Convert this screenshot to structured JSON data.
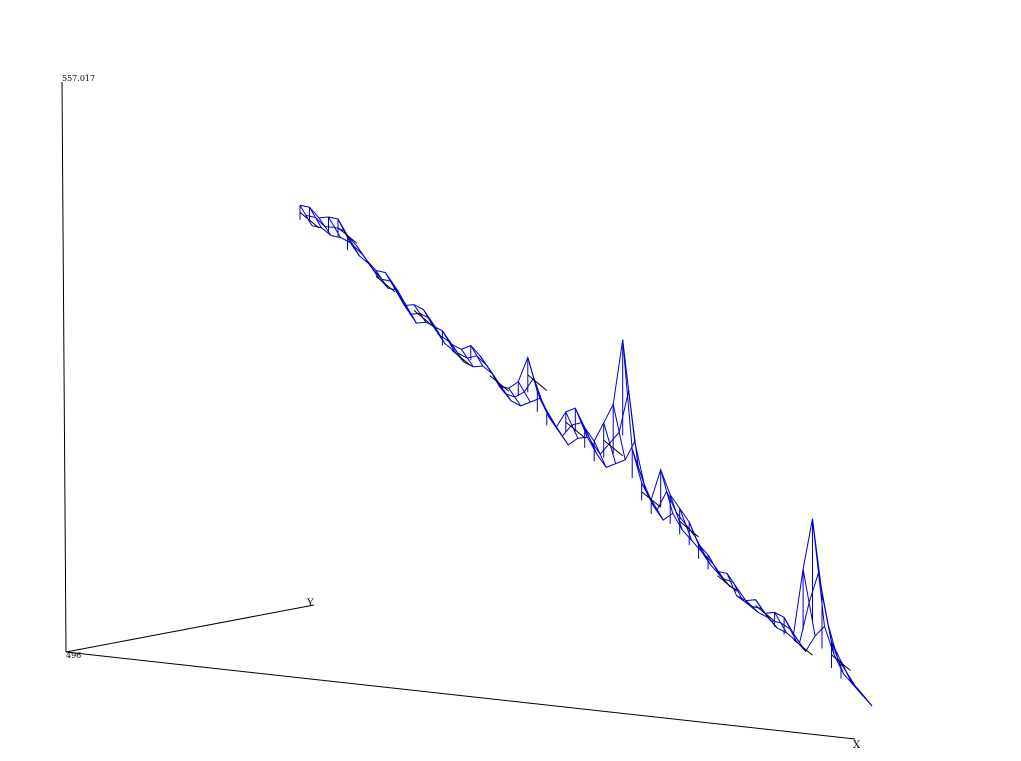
{
  "chart_data": {
    "type": "surface-wireframe",
    "axes": {
      "x_label": "X",
      "y_label": "Y",
      "z_max_label": "557.017",
      "z_min_label": "496",
      "z_range": [
        496,
        557.017
      ]
    },
    "colors": {
      "mesh": "#0000cc",
      "mesh_cross": "#000000",
      "axes": "#000000"
    },
    "surface": {
      "rows": 2,
      "cols": 60,
      "z_top": [
        508,
        510,
        509,
        512,
        514,
        511,
        510,
        508,
        507,
        509,
        506,
        503,
        506,
        507,
        504,
        505,
        503,
        504,
        508,
        507,
        505,
        502,
        504,
        509,
        520,
        511,
        507,
        504,
        512,
        516,
        512,
        510,
        519,
        528,
        553,
        518,
        509,
        506,
        519,
        513,
        511,
        509,
        504,
        503,
        500,
        502,
        497,
        498,
        501,
        499,
        502,
        503,
        500,
        525,
        545,
        522,
        508,
        504,
        500,
        499
      ],
      "z_bottom": [
        503,
        505,
        505,
        507,
        508,
        506,
        506,
        504,
        503,
        505,
        502,
        499,
        502,
        503,
        500,
        500,
        499,
        500,
        503,
        503,
        501,
        499,
        500,
        504,
        508,
        504,
        502,
        500,
        505,
        508,
        505,
        503,
        507,
        511,
        520,
        508,
        503,
        501,
        506,
        503,
        502,
        501,
        499,
        498,
        497,
        498,
        496,
        496,
        497,
        496,
        497,
        497,
        496,
        504,
        510,
        503,
        499,
        498,
        497,
        496
      ]
    }
  }
}
